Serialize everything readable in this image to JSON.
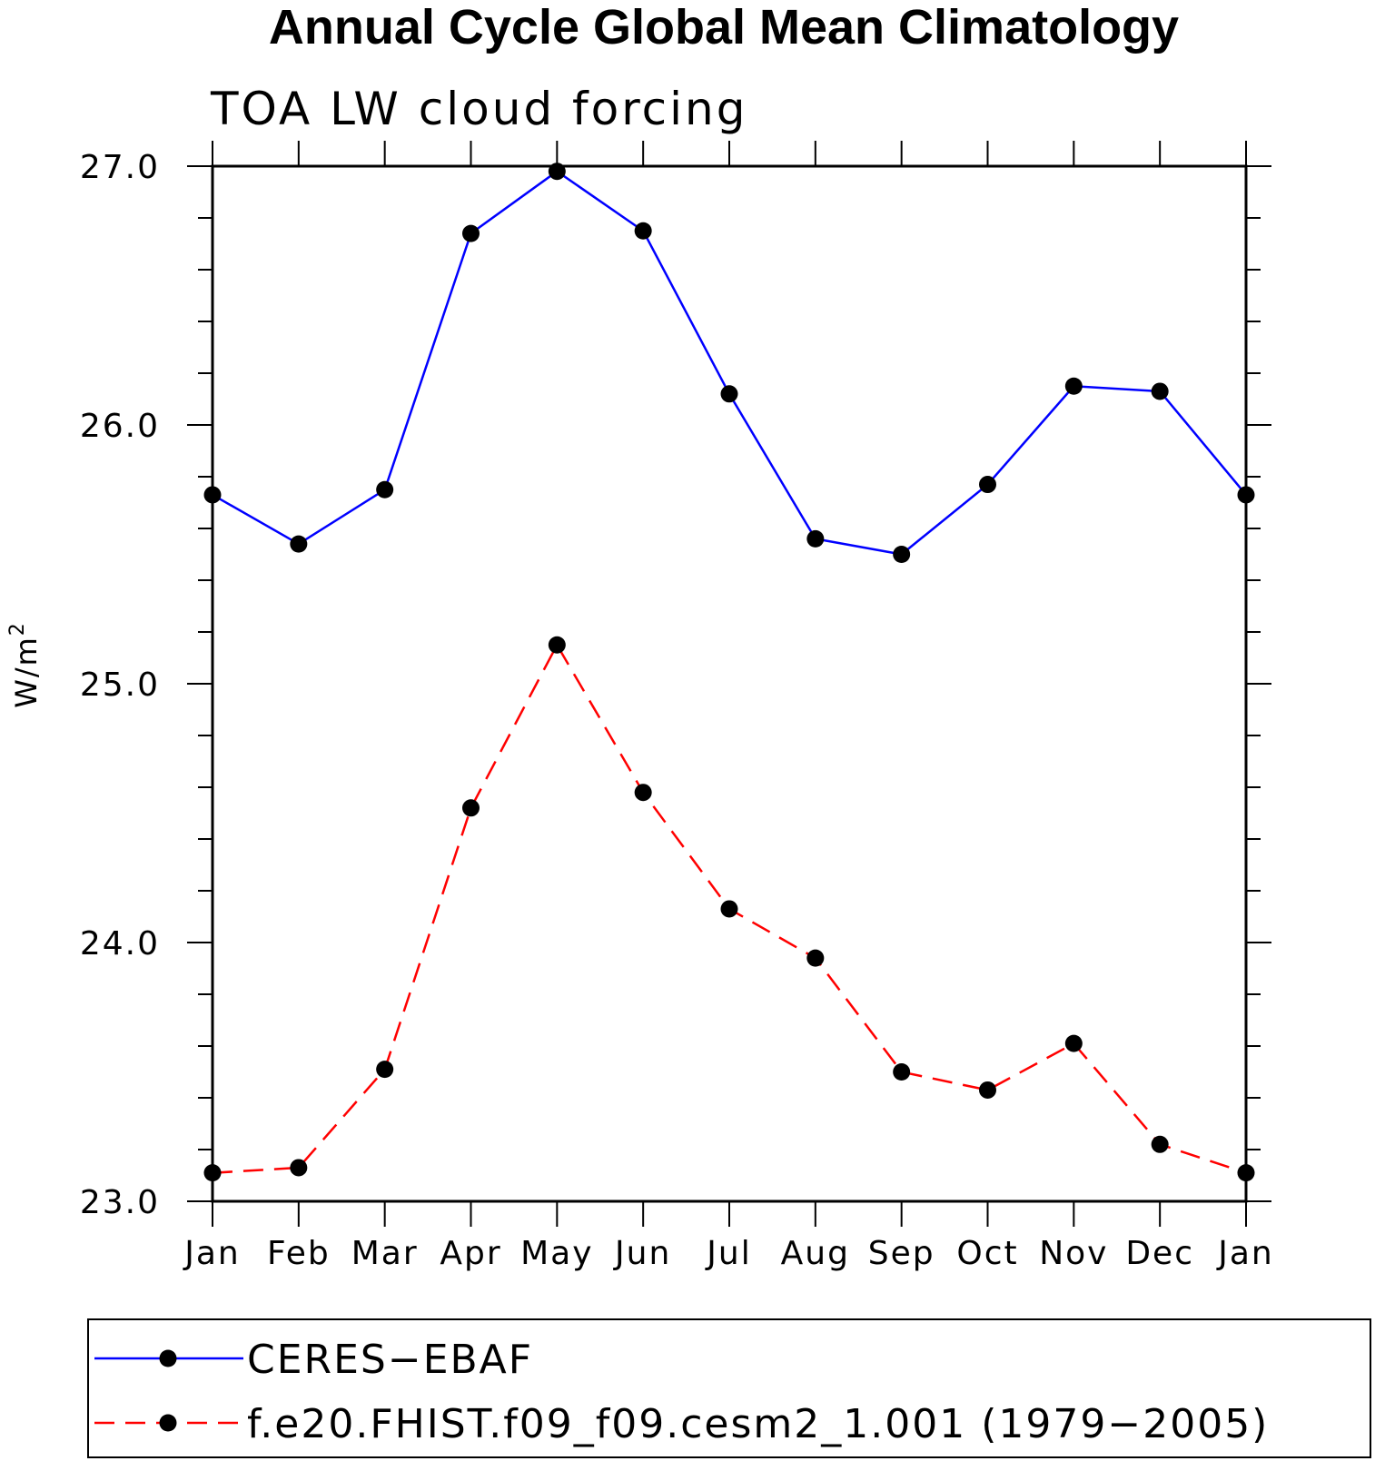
{
  "chart_data": {
    "type": "line",
    "title": "Annual Cycle Global Mean Climatology",
    "subtitle": "TOA LW cloud forcing",
    "xlabel": "",
    "ylabel": "W/m",
    "ylabel_superscript": "2",
    "ylim": [
      23.0,
      27.0
    ],
    "y_major_ticks": [
      23.0,
      24.0,
      25.0,
      26.0,
      27.0
    ],
    "y_tick_labels": [
      "23.0",
      "24.0",
      "25.0",
      "26.0",
      "27.0"
    ],
    "y_minor_step": 0.2,
    "categories": [
      "Jan",
      "Feb",
      "Mar",
      "Apr",
      "May",
      "Jun",
      "Jul",
      "Aug",
      "Sep",
      "Oct",
      "Nov",
      "Dec",
      "Jan"
    ],
    "grid": false,
    "legend_position": "bottom",
    "series": [
      {
        "name": "CERES−EBAF",
        "color": "#0000ff",
        "style": "solid",
        "values": [
          25.73,
          25.54,
          25.75,
          26.74,
          26.98,
          26.75,
          26.12,
          25.56,
          25.5,
          25.77,
          26.15,
          26.13,
          25.73
        ]
      },
      {
        "name": "f.e20.FHIST.f09_f09.cesm2_1.001 (1979−2005)",
        "color": "#ff0000",
        "style": "dashed",
        "values": [
          23.11,
          23.13,
          23.51,
          24.52,
          25.15,
          24.58,
          24.13,
          23.94,
          23.5,
          23.43,
          23.61,
          23.22,
          23.11
        ]
      }
    ],
    "marker_color": "#000000"
  }
}
